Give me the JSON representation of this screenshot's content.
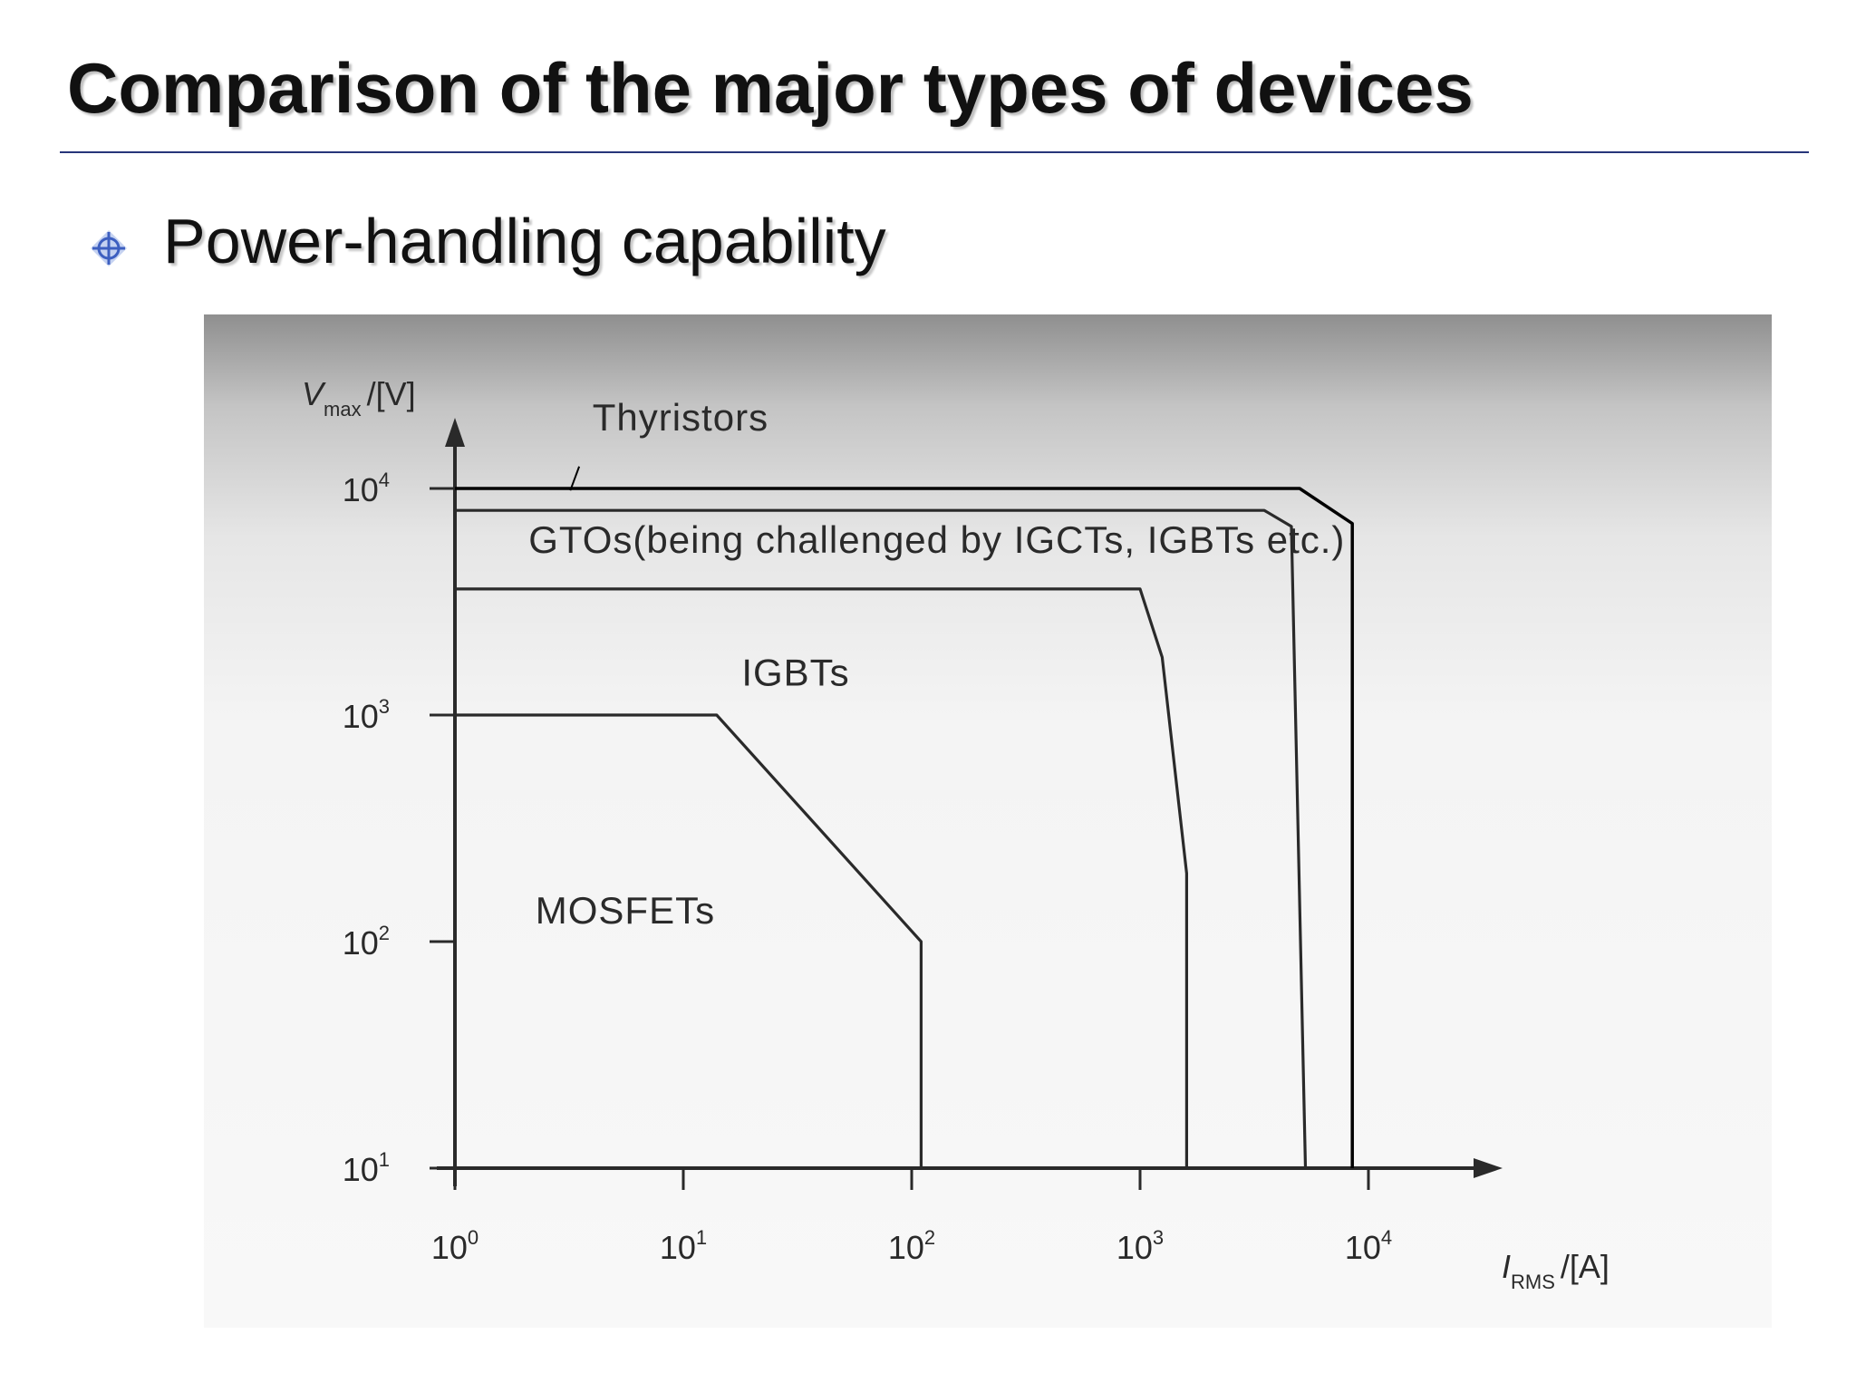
{
  "slide": {
    "title": "Comparison of the major types of devices",
    "bullet": "Power-handling capability",
    "accent_color": "#27357a",
    "bullet_icon": "crosshair-diamond-icon"
  },
  "chart_data": {
    "type": "area",
    "title": "",
    "xlabel": {
      "main": "I",
      "sub": "RMS",
      "unit": "/[A]"
    },
    "ylabel": {
      "main": "V",
      "sub": "max",
      "unit": "/[V]"
    },
    "x_scale": "log",
    "y_scale": "log",
    "xlim": [
      1,
      10000
    ],
    "ylim": [
      10,
      10000
    ],
    "x_ticks": [
      {
        "value": 1,
        "base": "10",
        "exp": "0"
      },
      {
        "value": 10,
        "base": "10",
        "exp": "1"
      },
      {
        "value": 100,
        "base": "10",
        "exp": "2"
      },
      {
        "value": 1000,
        "base": "10",
        "exp": "3"
      },
      {
        "value": 10000,
        "base": "10",
        "exp": "4"
      }
    ],
    "y_ticks": [
      {
        "value": 10,
        "base": "10",
        "exp": "1"
      },
      {
        "value": 100,
        "base": "10",
        "exp": "2"
      },
      {
        "value": 1000,
        "base": "10",
        "exp": "3"
      },
      {
        "value": 10000,
        "base": "10",
        "exp": "4"
      }
    ],
    "grid": false,
    "series": [
      {
        "name": "Thyristors",
        "boundary": [
          [
            1,
            10000
          ],
          [
            5000,
            10000
          ],
          [
            8500,
            7000
          ],
          [
            8500,
            10
          ]
        ],
        "label_position": [
          4,
          18000
        ],
        "leader": [
          [
            3.5,
            12500
          ],
          [
            3.2,
            9800
          ]
        ]
      },
      {
        "name": "GTOs(being challenged by IGCTs, IGBTs etc.)",
        "boundary": [
          [
            1,
            8000
          ],
          [
            3500,
            8000
          ],
          [
            4600,
            6800
          ],
          [
            5300,
            10
          ]
        ],
        "label_position": [
          2.1,
          5200
        ]
      },
      {
        "name": "IGBTs",
        "boundary": [
          [
            1,
            3600
          ],
          [
            1000,
            3600
          ],
          [
            1250,
            1800
          ],
          [
            1600,
            200
          ],
          [
            1600,
            10
          ]
        ],
        "label_position": [
          18,
          1350
        ]
      },
      {
        "name": "MOSFETs",
        "boundary": [
          [
            1,
            1000
          ],
          [
            14,
            1000
          ],
          [
            110,
            100
          ],
          [
            110,
            10
          ]
        ],
        "label_position": [
          2.25,
          120
        ]
      }
    ],
    "colors": {
      "lines": "#2a2a2a",
      "outer_line": "#000000"
    }
  }
}
